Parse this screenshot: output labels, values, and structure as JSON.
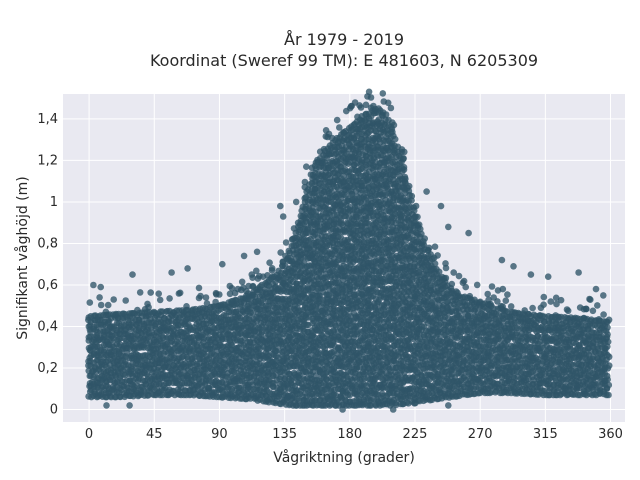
{
  "chart_data": {
    "type": "scatter",
    "title": [
      "År 1979 - 2019",
      "Koordinat (Sweref 99 TM): E 481603, N 6205309"
    ],
    "xlabel": "Vågriktning (grader)",
    "ylabel": "Signifikant våghöjd (m)",
    "xlim": [
      -18,
      370
    ],
    "ylim": [
      -0.06,
      1.52
    ],
    "x_ticks": [
      0,
      45,
      90,
      135,
      180,
      225,
      270,
      315,
      360
    ],
    "x_tick_labels": [
      "0",
      "45",
      "90",
      "135",
      "180",
      "225",
      "270",
      "315",
      "360"
    ],
    "y_ticks": [
      0,
      0.2,
      0.4,
      0.6,
      0.8,
      1.0,
      1.2,
      1.4
    ],
    "y_tick_labels": [
      "0",
      "0,2",
      "0,4",
      "0,6",
      "0,8",
      "1",
      "1,2",
      "1,4"
    ],
    "grid": true,
    "legend": false,
    "colors": {
      "marker": "#2f5468",
      "plot_background": "#e9e9f1",
      "grid": "#ffffff"
    },
    "envelope": {
      "x": [
        0,
        20,
        45,
        70,
        90,
        110,
        130,
        140,
        150,
        160,
        170,
        180,
        190,
        195,
        200,
        205,
        210,
        220,
        225,
        230,
        240,
        250,
        260,
        270,
        290,
        315,
        340,
        360
      ],
      "ymax": [
        0.45,
        0.46,
        0.47,
        0.48,
        0.5,
        0.55,
        0.65,
        0.8,
        1.05,
        1.22,
        1.3,
        1.36,
        1.42,
        1.44,
        1.45,
        1.42,
        1.33,
        1.1,
        0.95,
        0.82,
        0.68,
        0.58,
        0.54,
        0.52,
        0.47,
        0.45,
        0.44,
        0.42
      ],
      "ymin": [
        0.06,
        0.06,
        0.07,
        0.07,
        0.06,
        0.05,
        0.03,
        0.02,
        0.02,
        0.02,
        0.02,
        0.02,
        0.02,
        0.02,
        0.02,
        0.02,
        0.02,
        0.03,
        0.03,
        0.04,
        0.05,
        0.06,
        0.07,
        0.08,
        0.08,
        0.07,
        0.07,
        0.07
      ]
    },
    "outliers": [
      {
        "x": 3,
        "y": 0.6
      },
      {
        "x": 8,
        "y": 0.59
      },
      {
        "x": 30,
        "y": 0.65
      },
      {
        "x": 57,
        "y": 0.66
      },
      {
        "x": 68,
        "y": 0.68
      },
      {
        "x": 92,
        "y": 0.7
      },
      {
        "x": 107,
        "y": 0.74
      },
      {
        "x": 116,
        "y": 0.76
      },
      {
        "x": 132,
        "y": 0.98
      },
      {
        "x": 134,
        "y": 0.93
      },
      {
        "x": 143,
        "y": 1.0
      },
      {
        "x": 150,
        "y": 1.17
      },
      {
        "x": 233,
        "y": 1.05
      },
      {
        "x": 243,
        "y": 0.98
      },
      {
        "x": 248,
        "y": 0.88
      },
      {
        "x": 262,
        "y": 0.85
      },
      {
        "x": 285,
        "y": 0.72
      },
      {
        "x": 293,
        "y": 0.69
      },
      {
        "x": 305,
        "y": 0.65
      },
      {
        "x": 317,
        "y": 0.64
      },
      {
        "x": 338,
        "y": 0.66
      },
      {
        "x": 350,
        "y": 0.58
      },
      {
        "x": 355,
        "y": 0.55
      },
      {
        "x": 12,
        "y": 0.02
      },
      {
        "x": 28,
        "y": 0.02
      },
      {
        "x": 175,
        "y": 0.0
      },
      {
        "x": 210,
        "y": 0.0
      },
      {
        "x": 248,
        "y": 0.02
      }
    ]
  }
}
